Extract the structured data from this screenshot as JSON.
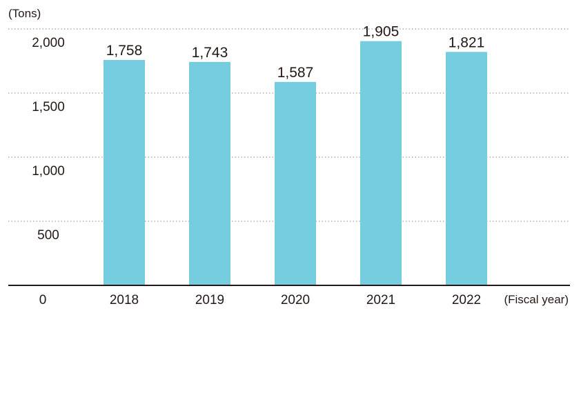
{
  "chart_data": {
    "type": "bar",
    "ylabel": "(Tons)",
    "xlabel": "(Fiscal year)",
    "categories": [
      "2018",
      "2019",
      "2020",
      "2021",
      "2022"
    ],
    "values": [
      1758,
      1743,
      1587,
      1905,
      1821
    ],
    "data_labels": [
      "1,758",
      "1,743",
      "1,587",
      "1,905",
      "1,821"
    ],
    "y_ticks": [
      {
        "value": 0,
        "label": "0"
      },
      {
        "value": 500,
        "label": "500"
      },
      {
        "value": 1000,
        "label": "1,000"
      },
      {
        "value": 1500,
        "label": "1,500"
      },
      {
        "value": 2000,
        "label": "2,000"
      }
    ],
    "ylim": [
      0,
      2000
    ],
    "grid": true,
    "legend": "none"
  },
  "colors": {
    "bar": "#76cde0",
    "text": "#231815",
    "grid": "#9e9e9e",
    "axis": "#231815"
  }
}
